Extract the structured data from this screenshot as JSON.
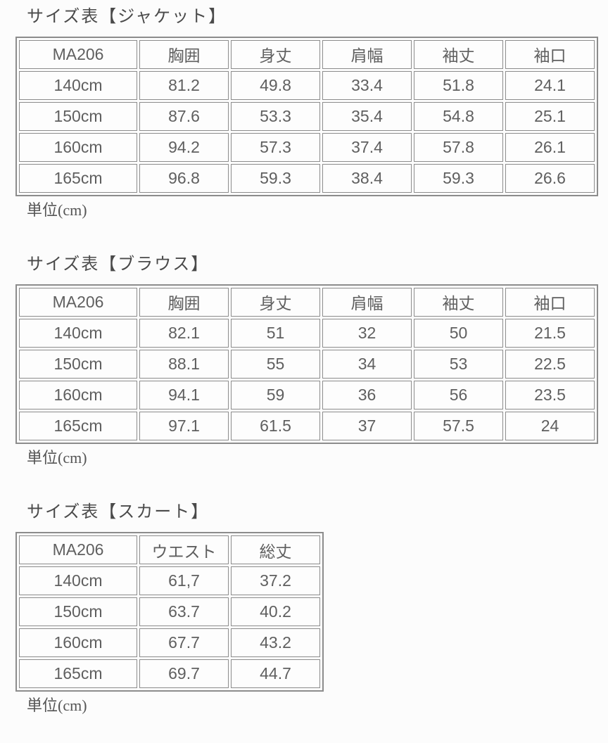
{
  "page": {
    "background_color": "#fcfcfc",
    "border_color": "#8c8c8c",
    "text_color": "#5f5f5f",
    "title_color": "#4a4a4a"
  },
  "tables": [
    {
      "title": "サイズ表【ジャケット】",
      "headers": [
        "MA206",
        "胸囲",
        "身丈",
        "肩幅",
        "袖丈",
        "袖口"
      ],
      "rows": [
        [
          "140cm",
          "81.2",
          "49.8",
          "33.4",
          "51.8",
          "24.1"
        ],
        [
          "150cm",
          "87.6",
          "53.3",
          "35.4",
          "54.8",
          "25.1"
        ],
        [
          "160cm",
          "94.2",
          "57.3",
          "37.4",
          "57.8",
          "26.1"
        ],
        [
          "165cm",
          "96.8",
          "59.3",
          "38.4",
          "59.3",
          "26.6"
        ]
      ],
      "unit": "単位(cm)"
    },
    {
      "title": "サイズ表【ブラウス】",
      "headers": [
        "MA206",
        "胸囲",
        "身丈",
        "肩幅",
        "袖丈",
        "袖口"
      ],
      "rows": [
        [
          "140cm",
          "82.1",
          "51",
          "32",
          "50",
          "21.5"
        ],
        [
          "150cm",
          "88.1",
          "55",
          "34",
          "53",
          "22.5"
        ],
        [
          "160cm",
          "94.1",
          "59",
          "36",
          "56",
          "23.5"
        ],
        [
          "165cm",
          "97.1",
          "61.5",
          "37",
          "57.5",
          "24"
        ]
      ],
      "unit": "単位(cm)"
    },
    {
      "title": "サイズ表【スカート】",
      "headers": [
        "MA206",
        "ウエスト",
        "総丈"
      ],
      "rows": [
        [
          "140cm",
          "61,7",
          "37.2"
        ],
        [
          "150cm",
          "63.7",
          "40.2"
        ],
        [
          "160cm",
          "67.7",
          "43.2"
        ],
        [
          "165cm",
          "69.7",
          "44.7"
        ]
      ],
      "unit": "単位(cm)"
    }
  ]
}
